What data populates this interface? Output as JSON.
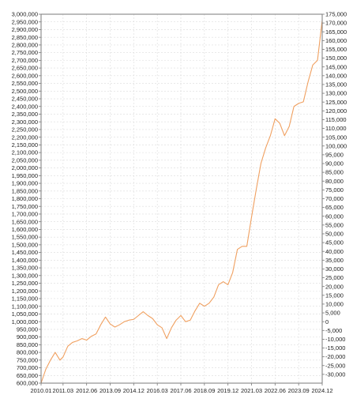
{
  "chart_data": {
    "type": "line",
    "title": "",
    "xlabel": "",
    "ylabel": "",
    "grid": true,
    "legend": "none",
    "x_ticks": [
      "2010.01",
      "2011.03",
      "2012.06",
      "2013.09",
      "2014.12",
      "2016.03",
      "2017.06",
      "2018.09",
      "2019.12",
      "2021.03",
      "2022.06",
      "2023.09",
      "2024.12"
    ],
    "ylim_left": [
      600000,
      3000000
    ],
    "y_ticks_left": [
      "600,000",
      "650,000",
      "700,000",
      "750,000",
      "800,000",
      "850,000",
      "900,000",
      "950,000",
      "1,000,000",
      "1,050,000",
      "1,100,000",
      "1,150,000",
      "1,200,000",
      "1,250,000",
      "1,300,000",
      "1,350,000",
      "1,400,000",
      "1,450,000",
      "1,500,000",
      "1,550,000",
      "1,600,000",
      "1,650,000",
      "1,700,000",
      "1,750,000",
      "1,800,000",
      "1,850,000",
      "1,900,000",
      "1,950,000",
      "2,000,000",
      "2,050,000",
      "2,100,000",
      "2,150,000",
      "2,200,000",
      "2,250,000",
      "2,300,000",
      "2,350,000",
      "2,400,000",
      "2,450,000",
      "2,500,000",
      "2,550,000",
      "2,600,000",
      "2,650,000",
      "2,700,000",
      "2,750,000",
      "2,800,000",
      "2,850,000",
      "2,900,000",
      "2,950,000",
      "3,000,000"
    ],
    "ylim_right": [
      -35000,
      175000
    ],
    "y_ticks_right": [
      "-30,000",
      "-25,000",
      "-20,000",
      "-15,000",
      "-10,000",
      "-5,000",
      "0",
      "5,000",
      "10,000",
      "15,000",
      "20,000",
      "25,000",
      "30,000",
      "35,000",
      "40,000",
      "45,000",
      "50,000",
      "55,000",
      "60,000",
      "65,000",
      "70,000",
      "75,000",
      "80,000",
      "85,000",
      "90,000",
      "95,000",
      "100,000",
      "105,000",
      "110,000",
      "115,000",
      "120,000",
      "125,000",
      "130,000",
      "135,000",
      "140,000",
      "145,000",
      "150,000",
      "155,000",
      "160,000",
      "165,000",
      "170,000",
      "175,000"
    ],
    "colors": {
      "line": "#f0a060",
      "frame": "#7a7a7a",
      "grid": "#dcdcdc"
    },
    "series": [
      {
        "x": [
          "2010.01",
          "2010.04",
          "2010.07",
          "2010.10",
          "2011.01",
          "2011.03",
          "2011.06",
          "2011.09",
          "2011.12",
          "2012.03",
          "2012.06",
          "2012.09",
          "2012.12",
          "2013.03",
          "2013.06",
          "2013.09",
          "2013.12",
          "2014.03",
          "2014.06",
          "2014.09",
          "2014.12",
          "2015.03",
          "2015.06",
          "2015.09",
          "2015.12",
          "2016.03",
          "2016.06",
          "2016.09",
          "2016.12",
          "2017.03",
          "2017.06",
          "2017.09",
          "2017.12",
          "2018.03",
          "2018.06",
          "2018.09",
          "2018.12",
          "2019.03",
          "2019.06",
          "2019.09",
          "2019.12",
          "2020.03",
          "2020.06",
          "2020.09",
          "2020.12",
          "2021.03",
          "2021.06",
          "2021.09",
          "2021.12",
          "2022.03",
          "2022.06",
          "2022.09",
          "2022.12",
          "2023.03",
          "2023.06",
          "2023.09",
          "2023.12",
          "2024.03",
          "2024.06",
          "2024.09",
          "2024.12"
        ],
        "values": [
          600000,
          690000,
          750000,
          800000,
          750000,
          770000,
          840000,
          865000,
          875000,
          890000,
          880000,
          905000,
          920000,
          980000,
          1030000,
          985000,
          965000,
          980000,
          1000000,
          1010000,
          1015000,
          1040000,
          1065000,
          1040000,
          1020000,
          980000,
          960000,
          890000,
          960000,
          1010000,
          1040000,
          1000000,
          1010000,
          1070000,
          1120000,
          1100000,
          1120000,
          1160000,
          1240000,
          1260000,
          1240000,
          1320000,
          1470000,
          1490000,
          1490000,
          1680000,
          1860000,
          2030000,
          2130000,
          2210000,
          2320000,
          2290000,
          2210000,
          2270000,
          2400000,
          2420000,
          2430000,
          2560000,
          2670000,
          2700000,
          2960000
        ]
      }
    ]
  }
}
